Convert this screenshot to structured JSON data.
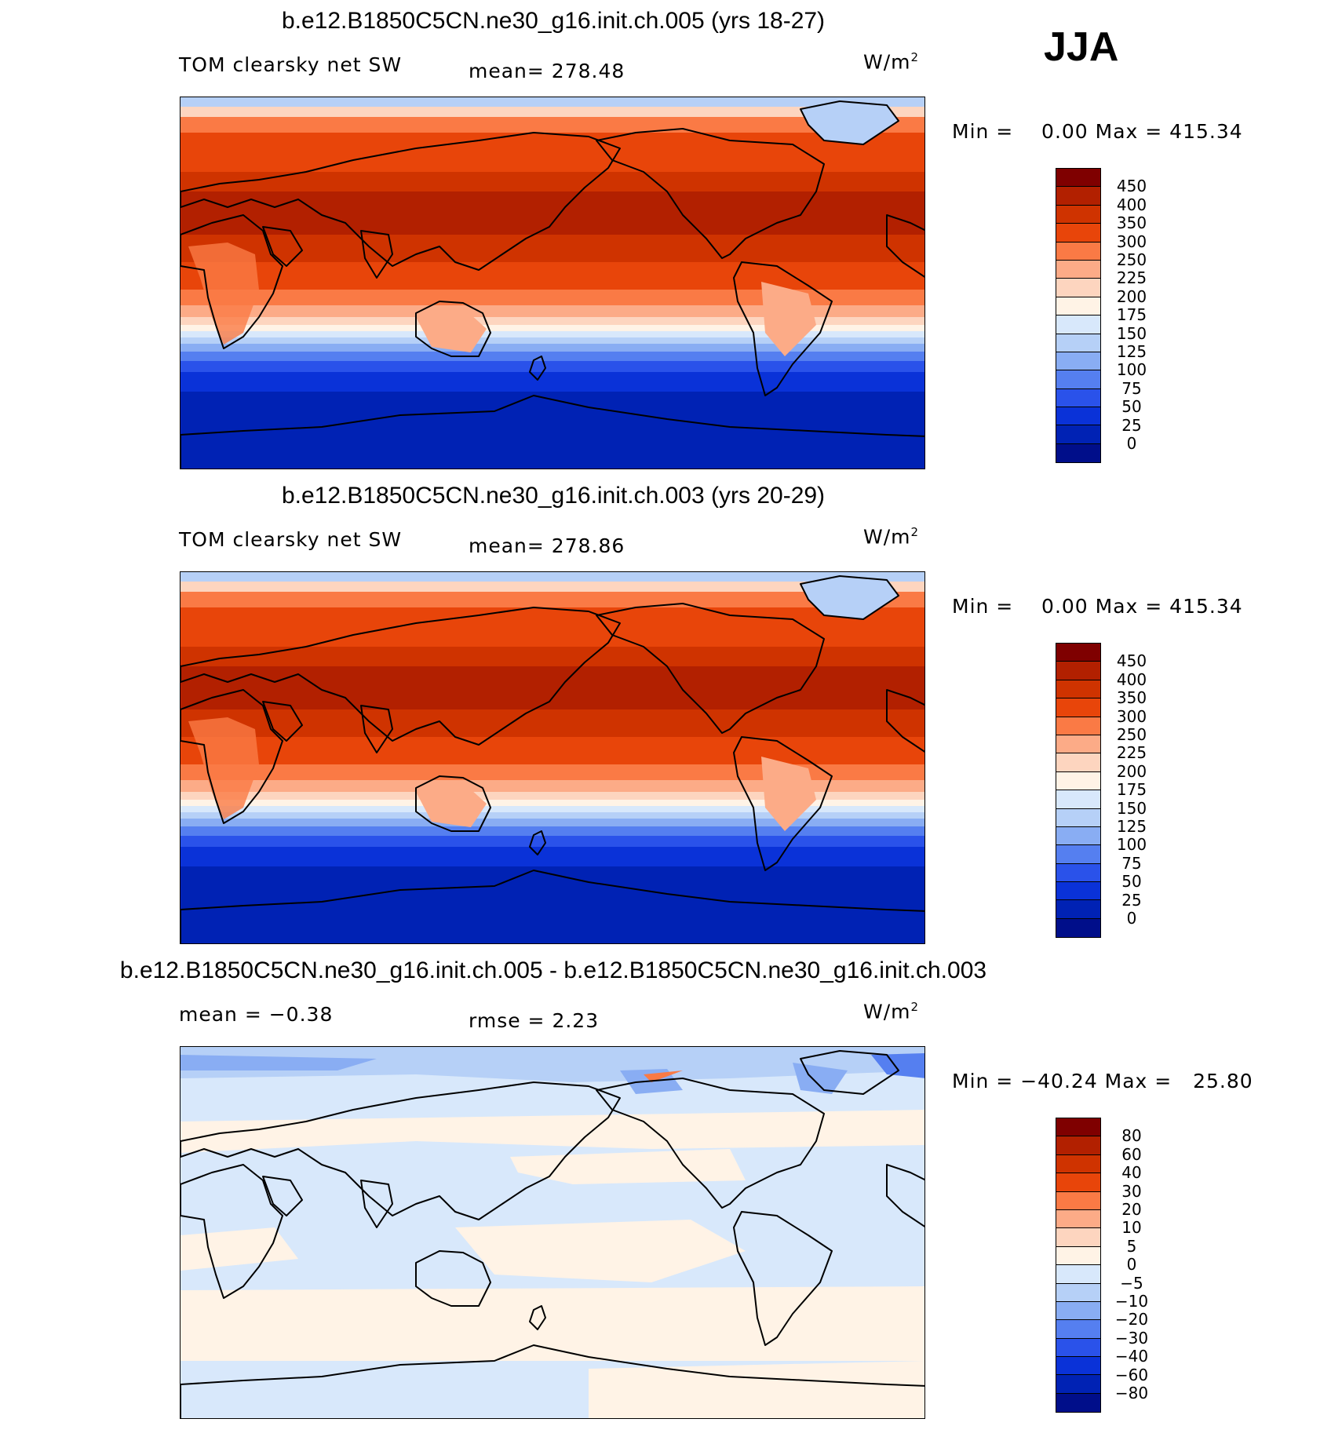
{
  "season": "JJA",
  "panels": [
    {
      "title": "b.e12.B1850C5CN.ne30_g16.init.ch.005 (yrs 18-27)",
      "left_label": "TOM clearsky net SW",
      "stat_label": "mean= 278.48",
      "units": "W/m",
      "units_exp": "2",
      "minmax": "Min =    0.00 Max = 415.34",
      "field": "abs",
      "colorbar": {
        "labels": [
          "450",
          "400",
          "350",
          "300",
          "250",
          "225",
          "200",
          "175",
          "150",
          "125",
          "100",
          "75",
          "50",
          "25",
          "0"
        ],
        "colors": [
          "#7f0000",
          "#b22000",
          "#cf3300",
          "#e8450a",
          "#fa7a45",
          "#fcab87",
          "#fdd5bf",
          "#fff3e6",
          "#d8e8fb",
          "#b6d0f7",
          "#89adf3",
          "#557ff0",
          "#2a52ea",
          "#0a32d8",
          "#0022b4",
          "#000e8a"
        ]
      }
    },
    {
      "title": "b.e12.B1850C5CN.ne30_g16.init.ch.003 (yrs 20-29)",
      "left_label": "TOM clearsky net SW",
      "stat_label": "mean= 278.86",
      "units": "W/m",
      "units_exp": "2",
      "minmax": "Min =    0.00 Max = 415.34",
      "field": "abs",
      "colorbar": {
        "labels": [
          "450",
          "400",
          "350",
          "300",
          "250",
          "225",
          "200",
          "175",
          "150",
          "125",
          "100",
          "75",
          "50",
          "25",
          "0"
        ],
        "colors": [
          "#7f0000",
          "#b22000",
          "#cf3300",
          "#e8450a",
          "#fa7a45",
          "#fcab87",
          "#fdd5bf",
          "#fff3e6",
          "#d8e8fb",
          "#b6d0f7",
          "#89adf3",
          "#557ff0",
          "#2a52ea",
          "#0a32d8",
          "#0022b4",
          "#000e8a"
        ]
      }
    },
    {
      "title": "b.e12.B1850C5CN.ne30_g16.init.ch.005 - b.e12.B1850C5CN.ne30_g16.init.ch.003",
      "left_label": "mean =   −0.38",
      "stat_label": "rmse =    2.23",
      "units": "W/m",
      "units_exp": "2",
      "minmax": "Min = −40.24 Max =   25.80",
      "field": "diff",
      "colorbar": {
        "labels": [
          "80",
          "60",
          "40",
          "30",
          "20",
          "10",
          "5",
          "0",
          "−5",
          "−10",
          "−20",
          "−30",
          "−40",
          "−60",
          "−80"
        ],
        "colors": [
          "#7f0000",
          "#b22000",
          "#cf3300",
          "#e8450a",
          "#fa7a45",
          "#fcab87",
          "#fdd5bf",
          "#fff3e6",
          "#d8e8fb",
          "#b6d0f7",
          "#89adf3",
          "#557ff0",
          "#2a52ea",
          "#0a32d8",
          "#0022b4",
          "#000e8a"
        ]
      }
    }
  ]
}
